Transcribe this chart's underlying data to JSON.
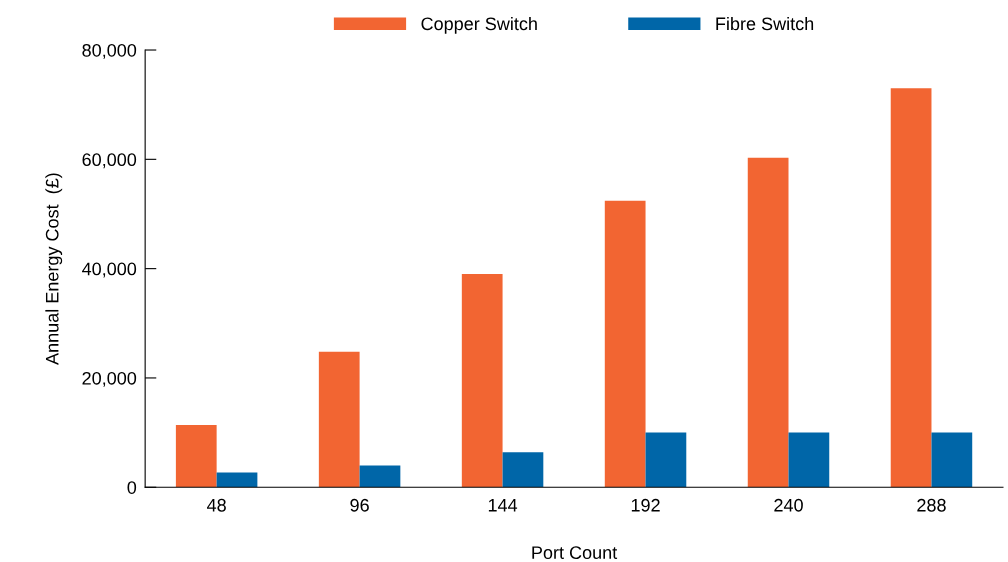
{
  "chart_data": {
    "type": "bar",
    "xlabel": "Port Count",
    "ylabel": "Annual Energy Cost  (£)",
    "categories": [
      "48",
      "96",
      "144",
      "192",
      "240",
      "288"
    ],
    "series": [
      {
        "name": "Copper Switch",
        "color": "#f26532",
        "values": [
          11400,
          24800,
          39000,
          52400,
          60300,
          73000
        ]
      },
      {
        "name": "Fibre Switch",
        "color": "#0066a8",
        "values": [
          2700,
          4000,
          6400,
          10000,
          10000,
          10000
        ]
      }
    ],
    "ylim": [
      0,
      80000
    ],
    "yticks": [
      {
        "value": 0,
        "label": "0"
      },
      {
        "value": 20000,
        "label": "20,000"
      },
      {
        "value": 40000,
        "label": "40,000"
      },
      {
        "value": 60000,
        "label": "60,000"
      },
      {
        "value": 80000,
        "label": "80,000"
      }
    ],
    "legend": "top",
    "grid": false
  }
}
